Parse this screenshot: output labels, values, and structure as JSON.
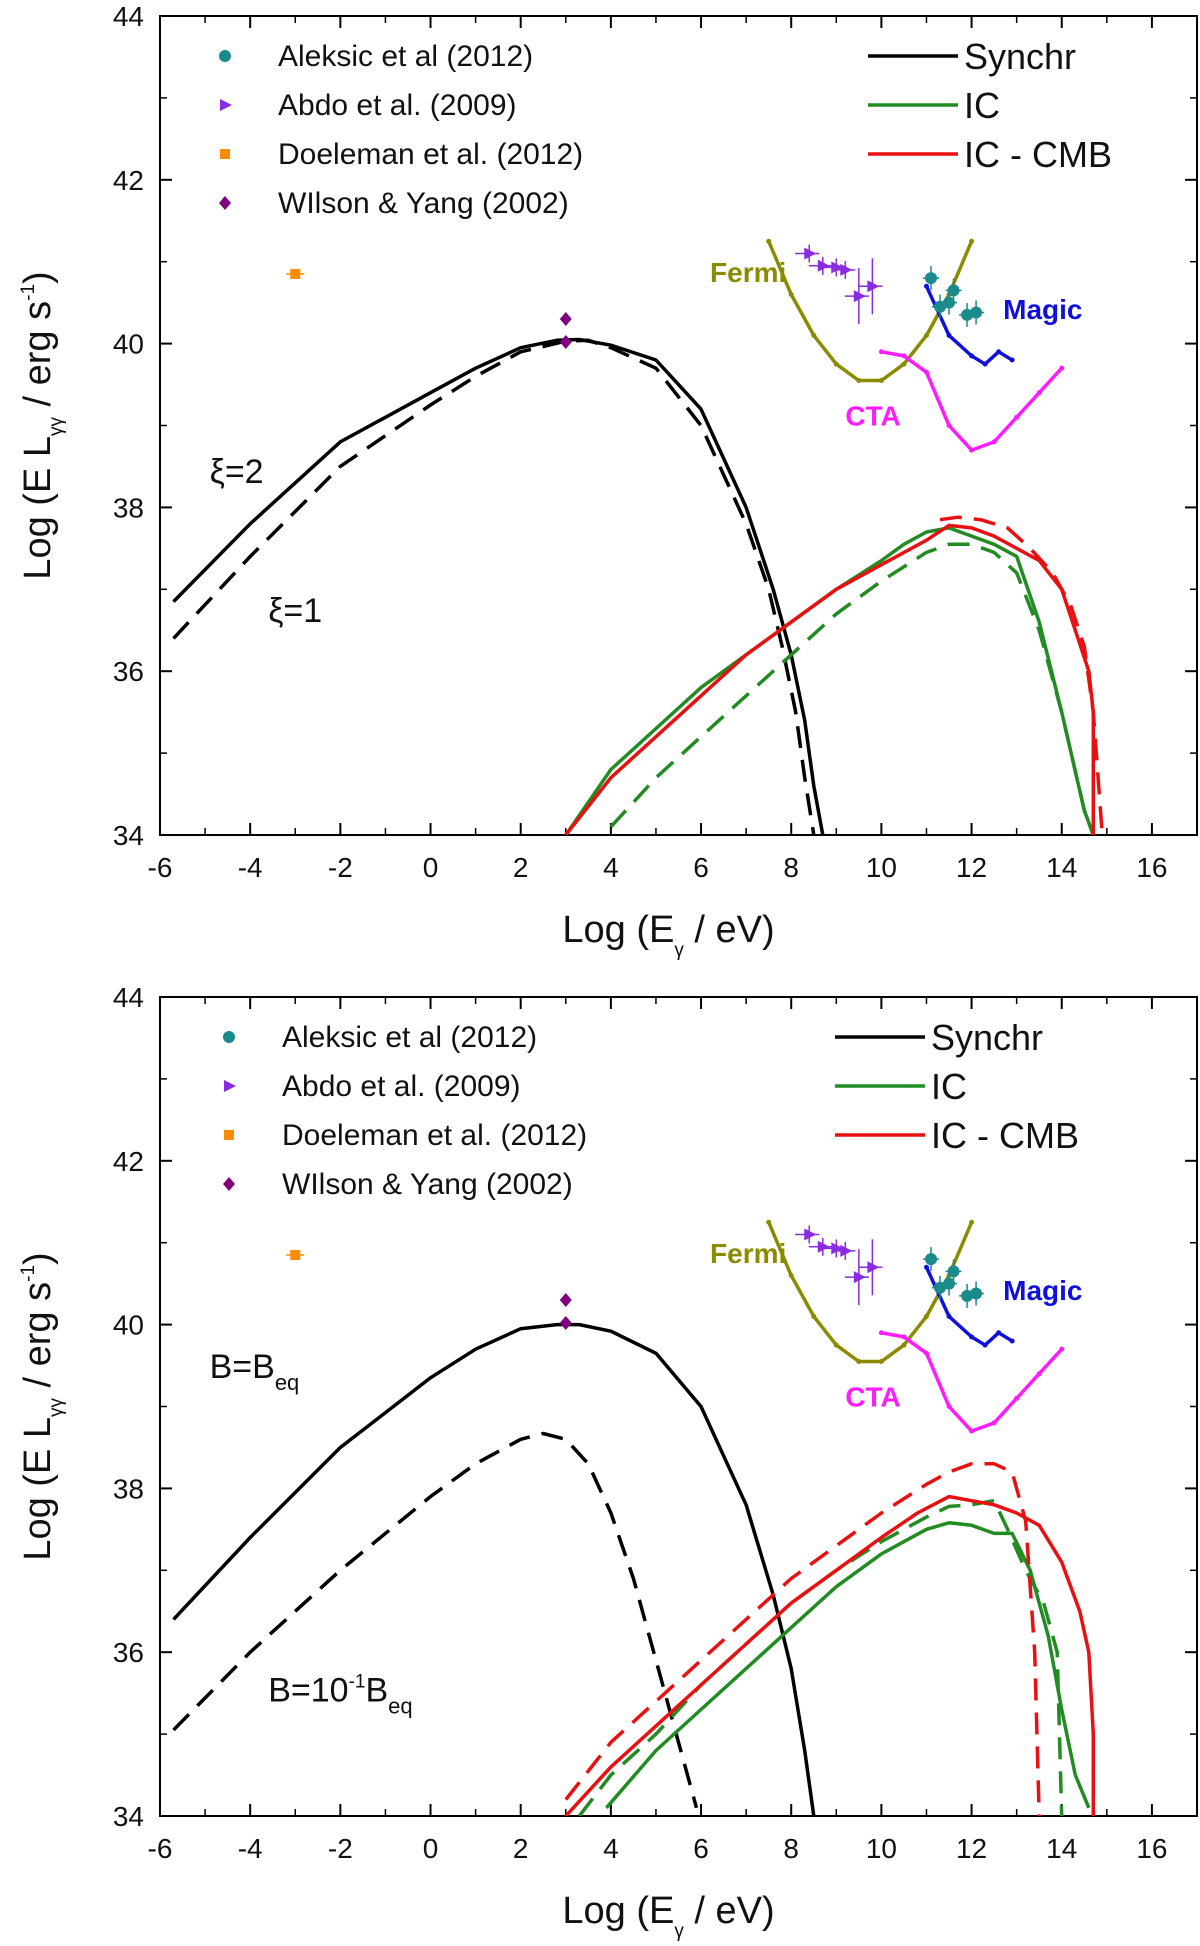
{
  "chart_data": [
    {
      "type": "line",
      "x_axis": {
        "label_main": "Log (E",
        "label_sub": "γ",
        "label_rest": " / eV)",
        "range": [
          -6,
          17
        ],
        "ticks": [
          -6,
          -4,
          -2,
          0,
          2,
          4,
          6,
          8,
          10,
          12,
          14,
          16
        ]
      },
      "y_axis": {
        "label_main": "Log (E",
        "label_sub": "γ",
        "label_L": "L",
        "label_sub2": "γ",
        "label_rest": " / erg s",
        "label_sup": "-1",
        "label_close": ")",
        "range": [
          34,
          44
        ],
        "ticks": [
          34,
          36,
          38,
          40,
          42,
          44
        ]
      },
      "legend_points": [
        {
          "name": "Aleksic et al (2012)",
          "color": "#1a8a8a",
          "marker": "circle"
        },
        {
          "name": "Abdo et al. (2009)",
          "color": "#8a2be2",
          "marker": "triangle-right"
        },
        {
          "name": "Doeleman et al. (2012)",
          "color": "#ff8c00",
          "marker": "square"
        },
        {
          "name": "WIlson & Yang (2002)",
          "color": "#800080",
          "marker": "diamond"
        }
      ],
      "legend_lines": [
        {
          "name": "Synchr",
          "color": "#000000"
        },
        {
          "name": "IC",
          "color": "#228b22"
        },
        {
          "name": "IC - CMB",
          "color": "#e81010"
        }
      ],
      "annotations": [
        {
          "text_main": "ξ=2",
          "text_sub": "",
          "text_sup": "",
          "text_rest": "",
          "x": -4.9,
          "y": 38.3
        },
        {
          "text_main": "ξ=1",
          "text_sub": "",
          "text_sup": "",
          "text_rest": "",
          "x": -3.6,
          "y": 36.6
        }
      ],
      "instruments": [
        {
          "name": "Fermi",
          "color": "#8b8b00",
          "x": [
            7.5,
            8.0,
            8.5,
            9.0,
            9.5,
            10.0,
            10.5,
            11.0,
            11.5,
            12.0
          ],
          "y": [
            41.25,
            40.6,
            40.1,
            39.75,
            39.55,
            39.55,
            39.75,
            40.1,
            40.6,
            41.25
          ],
          "label_x": 6.2,
          "label_y": 40.75
        },
        {
          "name": "CTA",
          "color": "#ff1aff",
          "x": [
            10.0,
            10.5,
            11.0,
            11.5,
            12.0,
            12.5,
            13.0,
            13.5,
            14.0
          ],
          "y": [
            39.9,
            39.85,
            39.65,
            39.0,
            38.7,
            38.8,
            39.1,
            39.4,
            39.7
          ],
          "label_x": 9.2,
          "label_y": 39.0
        },
        {
          "name": "Magic",
          "color": "#1010dd",
          "x": [
            11.0,
            11.5,
            12.0,
            12.3,
            12.6,
            12.9
          ],
          "y": [
            40.7,
            40.1,
            39.85,
            39.75,
            39.9,
            39.8
          ],
          "label_x": 12.7,
          "label_y": 40.3
        }
      ],
      "points": {
        "aleksic": {
          "x": [
            11.1,
            11.3,
            11.5,
            11.6,
            11.9,
            12.1
          ],
          "y": [
            40.8,
            40.45,
            40.5,
            40.65,
            40.35,
            40.38
          ]
        },
        "abdo": {
          "x": [
            8.4,
            8.7,
            9.0,
            9.2,
            9.5,
            9.8
          ],
          "y": [
            41.1,
            40.95,
            40.93,
            40.9,
            40.58,
            40.7
          ]
        },
        "doeleman": {
          "x": [
            -3.0
          ],
          "y": [
            40.85
          ]
        },
        "wilson": {
          "x": [
            3.0,
            3.0
          ],
          "y": [
            40.3,
            40.02
          ]
        }
      },
      "series": [
        {
          "name": "Synchr",
          "dash": false,
          "color": "#000000",
          "x": [
            -5.7,
            -4,
            -2,
            0,
            1,
            2,
            2.8,
            3.3,
            4,
            5,
            6,
            7,
            7.6,
            8.0,
            8.3,
            8.5,
            8.7
          ],
          "y": [
            36.85,
            37.8,
            38.8,
            39.4,
            39.7,
            39.95,
            40.04,
            40.05,
            39.98,
            39.8,
            39.2,
            38.0,
            37.0,
            36.2,
            35.4,
            34.6,
            34.0
          ]
        },
        {
          "name": "Synchr",
          "dash": true,
          "color": "#000000",
          "x": [
            -5.7,
            -4,
            -2,
            0,
            1,
            2,
            3.0,
            3.5,
            4,
            5,
            6,
            7,
            7.5,
            7.8,
            8.1,
            8.3,
            8.5
          ],
          "y": [
            36.4,
            37.4,
            38.5,
            39.25,
            39.6,
            39.9,
            40.03,
            40.04,
            39.95,
            39.7,
            39.0,
            37.8,
            37.0,
            36.3,
            35.5,
            34.7,
            34.0
          ]
        },
        {
          "name": "IC",
          "dash": false,
          "color": "#228b22",
          "x": [
            3.0,
            4,
            5,
            6,
            7,
            8,
            9,
            10,
            10.5,
            11,
            11.5,
            12,
            12.5,
            13,
            13.5,
            14,
            14.5,
            14.7
          ],
          "y": [
            34.0,
            34.8,
            35.3,
            35.8,
            36.2,
            36.6,
            37.0,
            37.35,
            37.55,
            37.7,
            37.75,
            37.65,
            37.55,
            37.4,
            36.6,
            35.5,
            34.3,
            34.0
          ]
        },
        {
          "name": "IC",
          "dash": true,
          "color": "#228b22",
          "x": [
            4.0,
            5,
            6,
            7,
            8,
            9,
            10,
            11,
            11.5,
            12,
            12.5,
            13,
            13.5,
            14,
            14.5,
            14.7
          ],
          "y": [
            34.1,
            34.7,
            35.2,
            35.7,
            36.2,
            36.7,
            37.1,
            37.45,
            37.55,
            37.55,
            37.45,
            37.2,
            36.5,
            35.5,
            34.3,
            34.0
          ]
        },
        {
          "name": "IC - CMB",
          "dash": false,
          "color": "#e81010",
          "x": [
            3.0,
            4,
            5,
            6,
            7,
            8,
            9,
            10,
            11,
            11.5,
            12,
            12.5,
            13,
            13.5,
            14,
            14.3,
            14.6,
            14.7,
            14.7
          ],
          "y": [
            34.0,
            34.7,
            35.2,
            35.7,
            36.2,
            36.6,
            37.0,
            37.3,
            37.6,
            37.78,
            37.75,
            37.65,
            37.5,
            37.35,
            37.0,
            36.5,
            36.0,
            35.5,
            34.0
          ]
        },
        {
          "name": "IC - CMB",
          "dash": true,
          "color": "#e81010",
          "x": [
            11.3,
            11.7,
            12.2,
            12.8,
            13.3,
            13.8,
            14.2,
            14.5,
            14.7,
            14.9
          ],
          "y": [
            37.85,
            37.88,
            37.85,
            37.75,
            37.5,
            37.2,
            36.8,
            36.3,
            35.5,
            34.0
          ]
        }
      ]
    },
    {
      "type": "line",
      "x_axis": {
        "label_main": "Log (E",
        "label_sub": "γ",
        "label_rest": " / eV)",
        "range": [
          -6,
          17
        ],
        "ticks": [
          -6,
          -4,
          -2,
          0,
          2,
          4,
          6,
          8,
          10,
          12,
          14,
          16
        ]
      },
      "y_axis": {
        "label_main": "Log (E",
        "label_sub": "γ",
        "label_L": "L",
        "label_sub2": "γ",
        "label_rest": " / erg s",
        "label_sup": "-1",
        "label_close": ")",
        "range": [
          34,
          44
        ],
        "ticks": [
          34,
          36,
          38,
          40,
          42,
          44
        ]
      },
      "legend_points": [
        {
          "name": "Aleksic et al (2012)",
          "color": "#1a8a8a",
          "marker": "circle"
        },
        {
          "name": "Abdo et al. (2009)",
          "color": "#8a2be2",
          "marker": "triangle-right"
        },
        {
          "name": "Doeleman et al. (2012)",
          "color": "#ff8c00",
          "marker": "square"
        },
        {
          "name": "WIlson & Yang (2002)",
          "color": "#800080",
          "marker": "diamond"
        }
      ],
      "legend_lines": [
        {
          "name": "Synchr",
          "color": "#000000"
        },
        {
          "name": "IC",
          "color": "#228b22"
        },
        {
          "name": "IC - CMB",
          "color": "#e81010"
        }
      ],
      "annotations": [
        {
          "text_main": "B=B",
          "text_sub": "eq",
          "text_sup": "",
          "text_rest": "",
          "x": -4.9,
          "y": 39.35
        },
        {
          "text_main": "B=10",
          "text_sup": "-1",
          "text_rest": "B",
          "text_sub": "eq",
          "x": -3.6,
          "y": 35.4
        }
      ],
      "instruments": [
        {
          "name": "Fermi",
          "color": "#8b8b00",
          "x": [
            7.5,
            8.0,
            8.5,
            9.0,
            9.5,
            10.0,
            10.5,
            11.0,
            11.5,
            12.0
          ],
          "y": [
            41.25,
            40.6,
            40.1,
            39.75,
            39.55,
            39.55,
            39.75,
            40.1,
            40.6,
            41.25
          ],
          "label_x": 6.2,
          "label_y": 40.75
        },
        {
          "name": "CTA",
          "color": "#ff1aff",
          "x": [
            10.0,
            10.5,
            11.0,
            11.5,
            12.0,
            12.5,
            13.0,
            13.5,
            14.0
          ],
          "y": [
            39.9,
            39.85,
            39.65,
            39.0,
            38.7,
            38.8,
            39.1,
            39.4,
            39.7
          ],
          "label_x": 9.2,
          "label_y": 39.0
        },
        {
          "name": "Magic",
          "color": "#1010dd",
          "x": [
            11.0,
            11.5,
            12.0,
            12.3,
            12.6,
            12.9
          ],
          "y": [
            40.7,
            40.1,
            39.85,
            39.75,
            39.9,
            39.8
          ],
          "label_x": 12.7,
          "label_y": 40.3
        }
      ],
      "points": {
        "aleksic": {
          "x": [
            11.1,
            11.3,
            11.5,
            11.6,
            11.9,
            12.1
          ],
          "y": [
            40.8,
            40.45,
            40.5,
            40.65,
            40.35,
            40.38
          ]
        },
        "abdo": {
          "x": [
            8.4,
            8.7,
            9.0,
            9.2,
            9.5,
            9.8
          ],
          "y": [
            41.1,
            40.95,
            40.93,
            40.9,
            40.58,
            40.7
          ]
        },
        "doeleman": {
          "x": [
            -3.0
          ],
          "y": [
            40.85
          ]
        },
        "wilson": {
          "x": [
            3.0,
            3.0
          ],
          "y": [
            40.3,
            40.02
          ]
        }
      },
      "series": [
        {
          "name": "Synchr",
          "dash": false,
          "color": "#000000",
          "x": [
            -5.7,
            -4,
            -2,
            0,
            1,
            2,
            2.8,
            3.3,
            4,
            5,
            6,
            7,
            7.6,
            8.0,
            8.3,
            8.5
          ],
          "y": [
            36.4,
            37.4,
            38.5,
            39.35,
            39.7,
            39.95,
            40.0,
            40.0,
            39.92,
            39.65,
            39.0,
            37.8,
            36.7,
            35.8,
            34.8,
            34.0
          ]
        },
        {
          "name": "Synchr",
          "dash": true,
          "color": "#000000",
          "x": [
            -5.7,
            -4,
            -2,
            0,
            1,
            2,
            2.5,
            3.0,
            3.5,
            4,
            4.5,
            5,
            5.5,
            5.9
          ],
          "y": [
            35.05,
            36.0,
            37.0,
            37.9,
            38.3,
            38.6,
            38.67,
            38.6,
            38.3,
            37.7,
            36.9,
            35.9,
            34.9,
            34.1
          ]
        },
        {
          "name": "IC",
          "dash": false,
          "color": "#228b22",
          "x": [
            3.9,
            5,
            6,
            7,
            8,
            9,
            10,
            11,
            11.5,
            12,
            12.5,
            12.9,
            13.3,
            13.7,
            14.0,
            14.3,
            14.6
          ],
          "y": [
            34.1,
            34.8,
            35.3,
            35.8,
            36.3,
            36.8,
            37.2,
            37.5,
            37.58,
            37.55,
            37.45,
            37.45,
            37.0,
            36.2,
            35.3,
            34.5,
            34.1
          ]
        },
        {
          "name": "IC",
          "dash": true,
          "color": "#228b22",
          "x": [
            3.3,
            4,
            5,
            6,
            7,
            8,
            9,
            10,
            11,
            11.5,
            12,
            12.5,
            12.8,
            13.2,
            13.6,
            13.9,
            14.0
          ],
          "y": [
            34.0,
            34.5,
            35.0,
            35.6,
            36.1,
            36.6,
            37.0,
            37.35,
            37.65,
            37.78,
            37.8,
            37.85,
            37.5,
            37.0,
            36.6,
            36.0,
            34.0
          ]
        },
        {
          "name": "IC - CMB",
          "dash": false,
          "color": "#e81010",
          "x": [
            3.0,
            4,
            5,
            6,
            7,
            8,
            9,
            10,
            10.8,
            11.5,
            12,
            12.5,
            13,
            13.5,
            14.0,
            14.4,
            14.6,
            14.7,
            14.7
          ],
          "y": [
            34.0,
            34.6,
            35.1,
            35.6,
            36.1,
            36.6,
            37.0,
            37.4,
            37.7,
            37.9,
            37.85,
            37.8,
            37.7,
            37.55,
            37.1,
            36.5,
            36.0,
            35.0,
            34.0
          ]
        },
        {
          "name": "IC - CMB",
          "dash": true,
          "color": "#e81010",
          "x": [
            3.0,
            4,
            5,
            6,
            7,
            8,
            9,
            10,
            11,
            11.5,
            12,
            12.5,
            12.9,
            13.2,
            13.4,
            13.5
          ],
          "y": [
            34.2,
            34.9,
            35.4,
            35.9,
            36.4,
            36.9,
            37.3,
            37.7,
            38.05,
            38.2,
            38.3,
            38.3,
            38.2,
            37.6,
            36.0,
            34.0
          ]
        }
      ]
    }
  ]
}
